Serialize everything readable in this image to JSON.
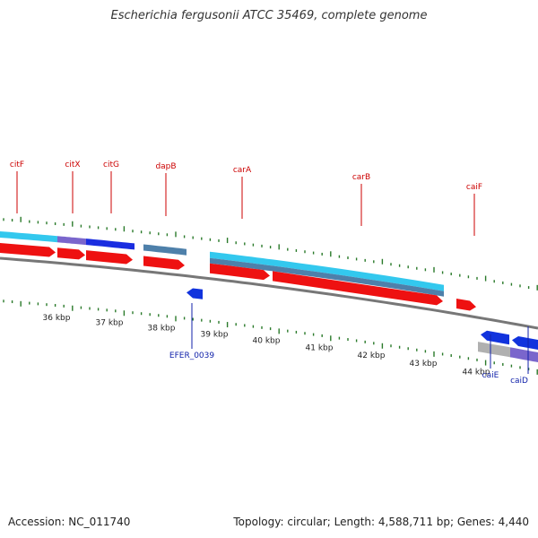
{
  "title": "Escherichia fergusonii ATCC 35469, complete genome",
  "footer": {
    "accession": "Accession: NC_011740",
    "topology": "Topology: circular; Length: 4,588,711 bp; Genes: 4,440"
  },
  "colors": {
    "forward_gene": "#ee1111",
    "reverse_gene": "#1133dd",
    "label_forward": "#cc0000",
    "label_reverse": "#1122aa",
    "tick": "#2a7a2a",
    "backbone": "#777777",
    "feature_cyan": "#33c8ee",
    "feature_steel": "#4e80aa",
    "feature_blue": "#1a2de0",
    "feature_purple": "#7a66cc",
    "feature_gray": "#b0b0b0"
  },
  "scale_labels": [
    "36 kbp",
    "37 kbp",
    "38 kbp",
    "39 kbp",
    "40 kbp",
    "41 kbp",
    "42 kbp",
    "43 kbp",
    "44 kbp"
  ],
  "gene_labels_top": [
    "citF",
    "citX",
    "citG",
    "dapB",
    "carA",
    "carB",
    "caiF"
  ],
  "gene_labels_bottom": [
    "EFER_0039",
    "caiE",
    "caiD"
  ]
}
